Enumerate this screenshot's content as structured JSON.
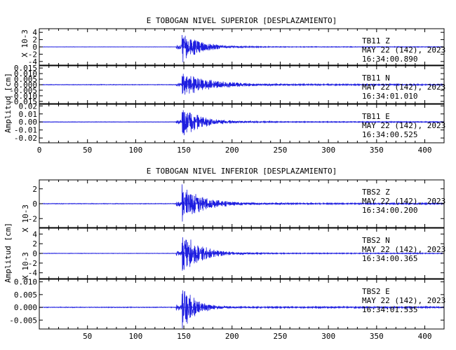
{
  "chart_data": [
    {
      "type": "line",
      "title": "E TOBOGAN NIVEL SUPERIOR [DESPLAZAMIENTO]",
      "ylabel": "Amplitud [cm]",
      "xlim": [
        0,
        420
      ],
      "x_ticks": [
        "0",
        "50",
        "100",
        "150",
        "200",
        "250",
        "300",
        "350",
        "400"
      ],
      "panels": [
        {
          "station": "TB11",
          "component": "Z",
          "date": "MAY 22 (142), 2023",
          "time": "16:34:00.890",
          "scale_label": "X 10-3",
          "ylim": [
            -5,
            5
          ],
          "y_ticks": [
            {
              "v": 4,
              "t": "4"
            },
            {
              "v": 2,
              "t": "2"
            },
            {
              "v": 0,
              "t": "0"
            },
            {
              "v": -2,
              "t": "-2"
            },
            {
              "v": -4,
              "t": "-4"
            }
          ],
          "onset": 148,
          "peak": 4.6,
          "decay": 18,
          "pre_noise": 0.05
        },
        {
          "station": "TB11",
          "component": "N",
          "date": "MAY 22 (142), 2023",
          "time": "16:34:01.010",
          "scale_label": "",
          "ylim": [
            -0.017,
            0.017
          ],
          "y_ticks": [
            {
              "v": 0.015,
              "t": "0.015"
            },
            {
              "v": 0.01,
              "t": "0.010"
            },
            {
              "v": 0.005,
              "t": "0.005"
            },
            {
              "v": 0,
              "t": "0.000"
            },
            {
              "v": -0.005,
              "t": "-0.005"
            },
            {
              "v": -0.01,
              "t": "-0.010"
            },
            {
              "v": -0.015,
              "t": "-0.015"
            }
          ],
          "onset": 148,
          "peak": 0.0115,
          "decay": 28,
          "pre_noise": 0.0003
        },
        {
          "station": "TB11",
          "component": "E",
          "date": "MAY 22 (142), 2023",
          "time": "16:34:00.525",
          "scale_label": "",
          "ylim": [
            -0.026,
            0.022
          ],
          "y_ticks": [
            {
              "v": 0.02,
              "t": "0.02"
            },
            {
              "v": 0.01,
              "t": "0.01"
            },
            {
              "v": 0,
              "t": "0.00"
            },
            {
              "v": -0.01,
              "t": "-0.01"
            },
            {
              "v": -0.02,
              "t": "-0.02"
            }
          ],
          "onset": 148,
          "peak": 0.02,
          "decay": 20,
          "pre_noise": 0.0003
        }
      ]
    },
    {
      "type": "line",
      "title": "E TOBOGAN NIVEL INFERIOR [DESPLAZAMIENTO]",
      "ylabel": "Amplitud [cm]",
      "xlim": [
        0,
        420
      ],
      "x_ticks": [
        "50",
        "100",
        "150",
        "200",
        "250",
        "300",
        "350",
        "400"
      ],
      "panels": [
        {
          "station": "TBS2",
          "component": "Z",
          "date": "MAY 22 (142), 2023",
          "time": "16:34:00.200",
          "scale_label": "X 10-3",
          "ylim": [
            -3.2,
            3.2
          ],
          "y_ticks": [
            {
              "v": 2,
              "t": "2"
            },
            {
              "v": 0,
              "t": "0"
            },
            {
              "v": -2,
              "t": "-2"
            }
          ],
          "onset": 148,
          "peak": 2.8,
          "decay": 20,
          "pre_noise": 0.05
        },
        {
          "station": "TBS2",
          "component": "N",
          "date": "MAY 22 (142), 2023",
          "time": "16:34:00.365",
          "scale_label": "X 10-3",
          "ylim": [
            -5.2,
            5.2
          ],
          "y_ticks": [
            {
              "v": 4,
              "t": "4"
            },
            {
              "v": 2,
              "t": "2"
            },
            {
              "v": 0,
              "t": "0"
            },
            {
              "v": -2,
              "t": "-2"
            },
            {
              "v": -4,
              "t": "-4"
            }
          ],
          "onset": 148,
          "peak": 4.8,
          "decay": 18,
          "pre_noise": 0.05
        },
        {
          "station": "TBS2",
          "component": "E",
          "date": "MAY 22 (142), 2023",
          "time": "16:34:01.535",
          "scale_label": "",
          "ylim": [
            -0.0085,
            0.011
          ],
          "y_ticks": [
            {
              "v": 0.01,
              "t": "0.010"
            },
            {
              "v": 0.005,
              "t": "0.005"
            },
            {
              "v": 0,
              "t": "0.000"
            },
            {
              "v": -0.005,
              "t": "-0.005"
            }
          ],
          "onset": 148,
          "peak": 0.0105,
          "decay": 12,
          "pre_noise": 0.00015
        }
      ]
    }
  ]
}
